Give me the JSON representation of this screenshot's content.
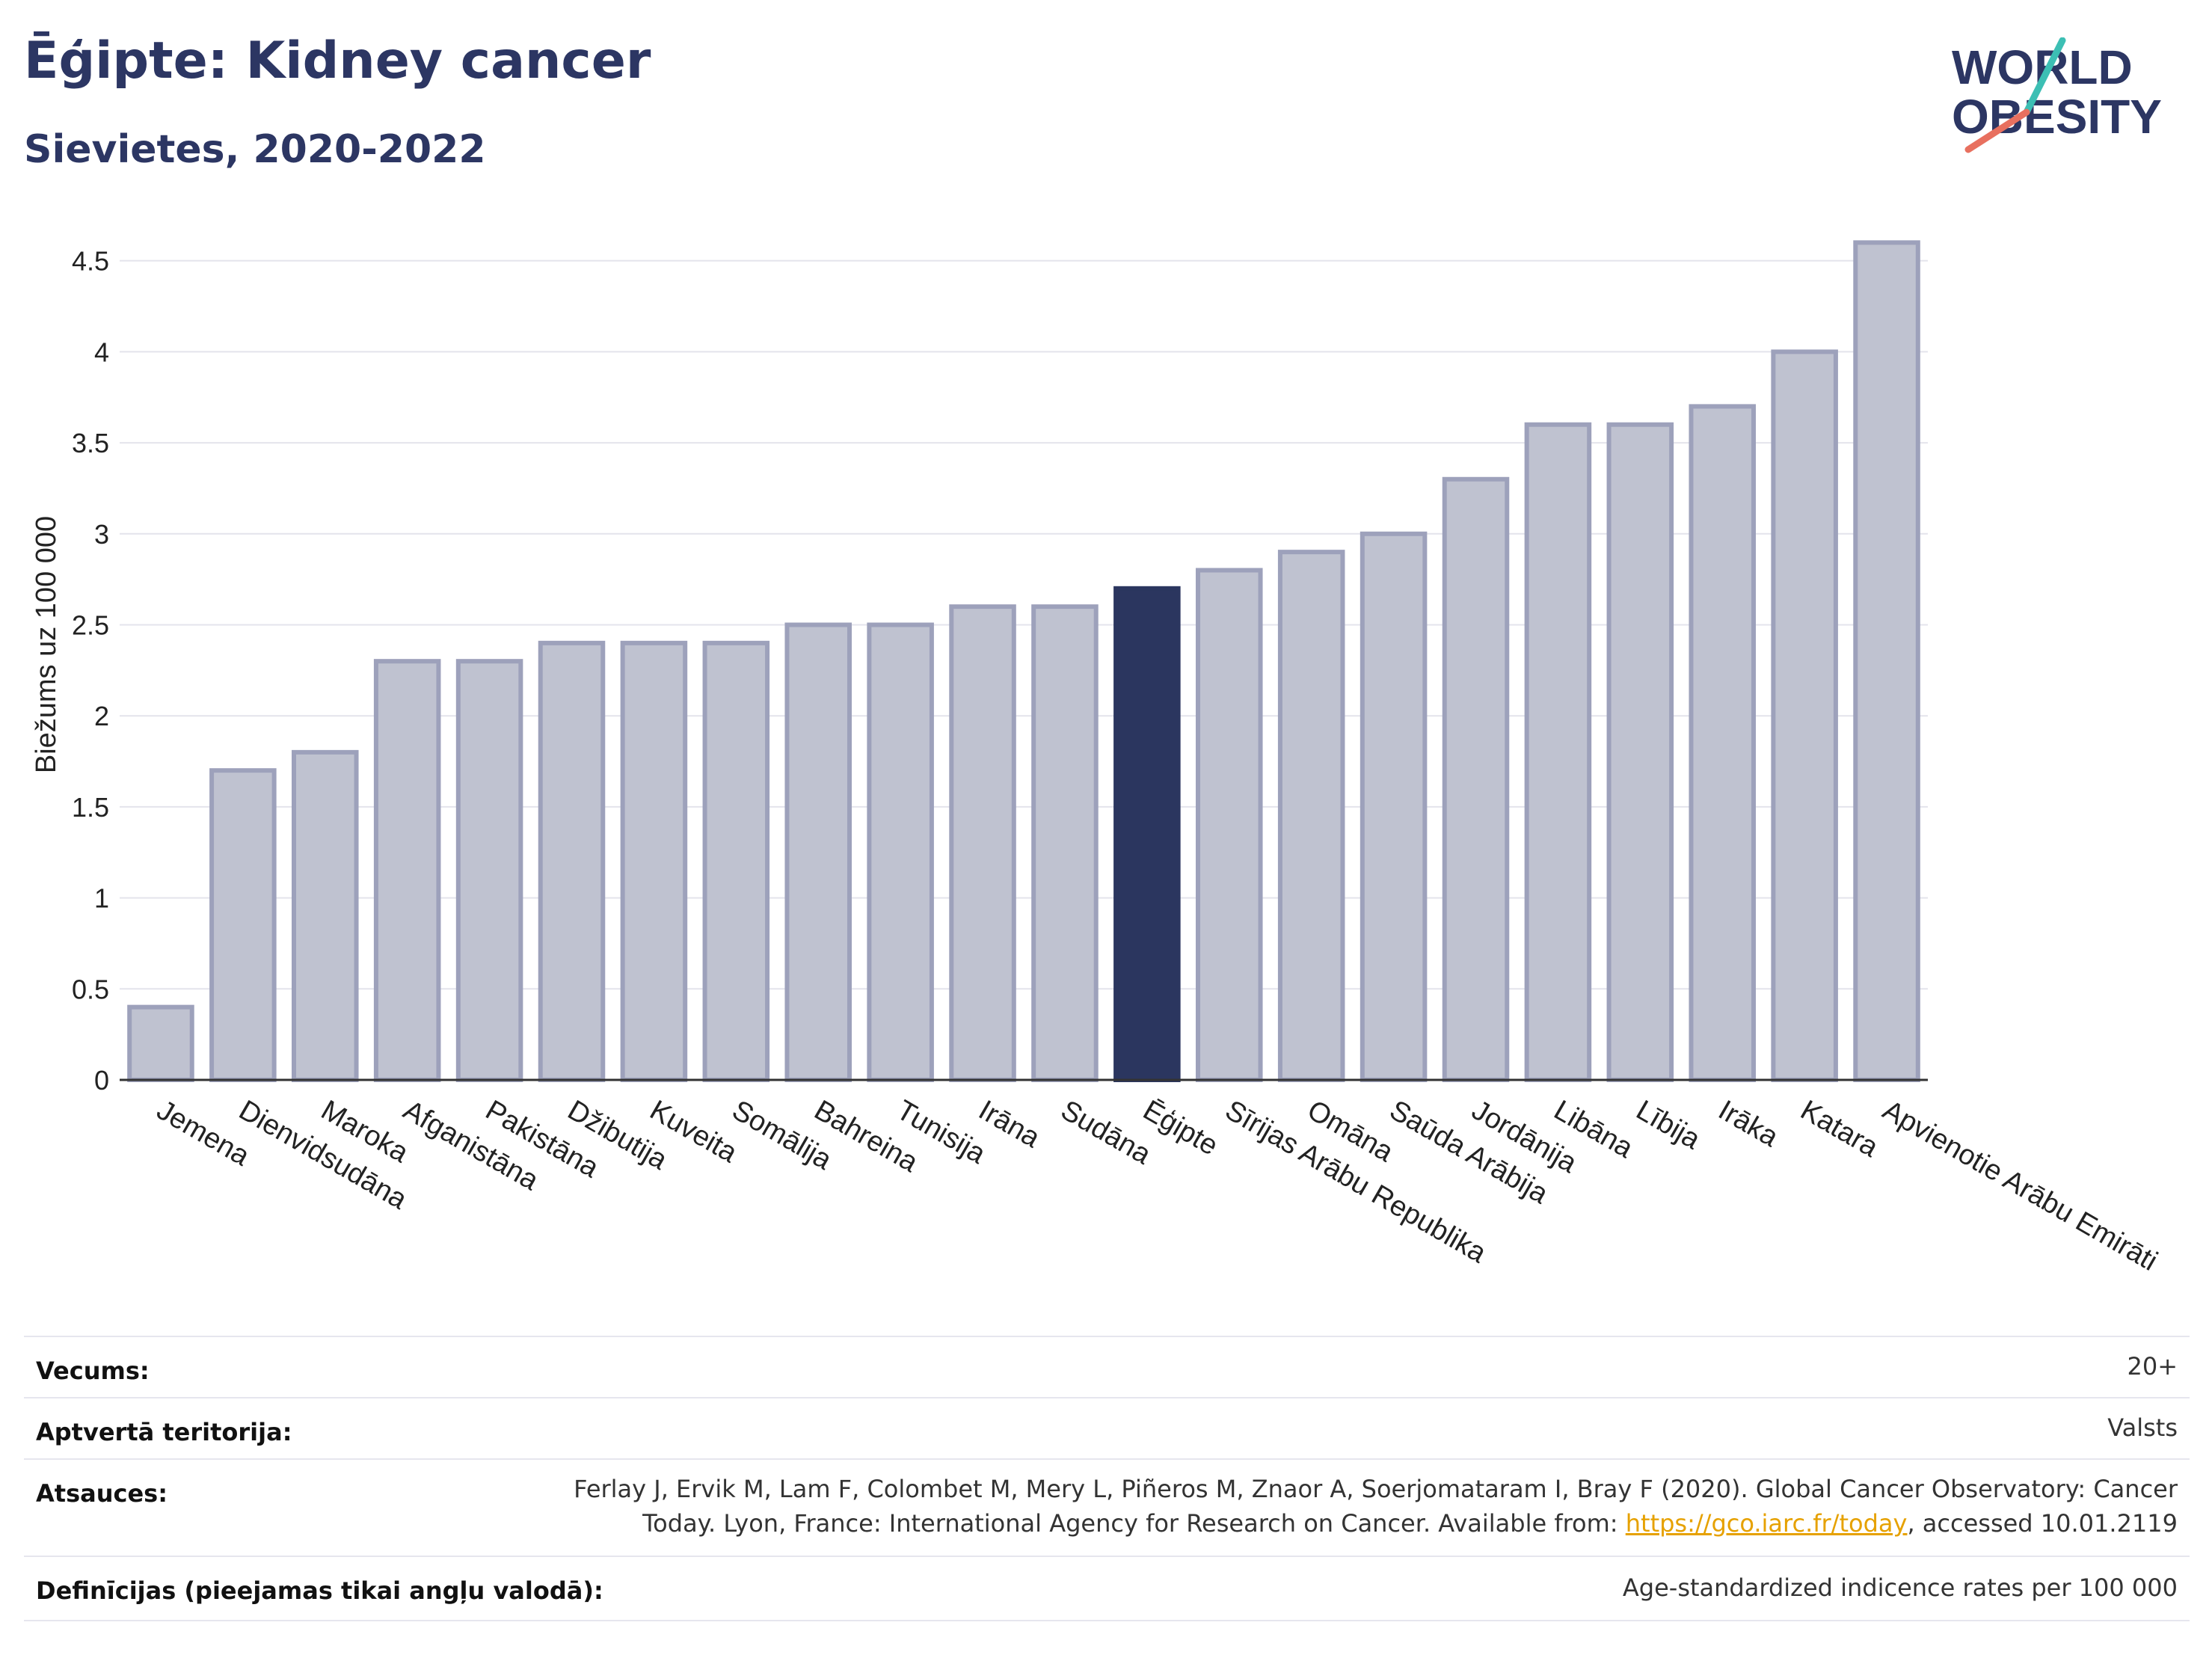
{
  "header": {
    "title": "Ēģipte: Kidney cancer",
    "subtitle": "Sievietes, 2020-2022"
  },
  "logo": {
    "line1": "WORLD",
    "line2": "OBESITY"
  },
  "colors": {
    "highlight": "#2b365f",
    "bar": "#bfc2d0",
    "bar_border": "#9da1bb",
    "grid": "#e4e4ec"
  },
  "chart_data": {
    "type": "bar",
    "ylabel": "Biežums uz 100 000",
    "ylim": [
      0,
      4.7
    ],
    "yticks": [
      "0",
      "0.5",
      "1",
      "1.5",
      "2",
      "2.5",
      "3",
      "3.5",
      "4",
      "4.5"
    ],
    "ytick_values": [
      0,
      0.5,
      1,
      1.5,
      2,
      2.5,
      3,
      3.5,
      4,
      4.5
    ],
    "grid": true,
    "highlight": "Ēģipte",
    "categories": [
      "Jemena",
      "Dienvidsudāna",
      "Maroka",
      "Afganistāna",
      "Pakistāna",
      "Džibutija",
      "Kuveita",
      "Somālija",
      "Bahreina",
      "Tunisija",
      "Irāna",
      "Sudāna",
      "Ēģipte",
      "Sīrijas Arābu Republika",
      "Omāna",
      "Saūda Arābija",
      "Jordānija",
      "Libāna",
      "Lībija",
      "Irāka",
      "Katara",
      "Apvienotie Arābu Emirāti"
    ],
    "values": [
      0.4,
      1.7,
      1.8,
      2.3,
      2.3,
      2.4,
      2.4,
      2.4,
      2.5,
      2.5,
      2.6,
      2.6,
      2.7,
      2.8,
      2.9,
      3.0,
      3.3,
      3.6,
      3.6,
      3.7,
      4.0,
      4.6
    ]
  },
  "info": {
    "age_label": "Vecums:",
    "age_value": "20+",
    "territory_label": "Aptvertā teritorija:",
    "territory_value": "Valsts",
    "refs_label": "Atsauces:",
    "refs_line1": "Ferlay J, Ervik M, Lam F, Colombet M, Mery L, Piñeros M, Znaor A, Soerjomataram I, Bray F (2020). Global Cancer Observatory: Cancer",
    "refs_line2_pre": "Today. Lyon, France: International Agency for Research on Cancer. Available from: ",
    "refs_link": "https://gco.iarc.fr/today",
    "refs_line2_post": ", accessed 10.01.2119",
    "defs_label": "Definīcijas (pieejamas tikai angļu valodā):",
    "defs_value": "Age-standardized indicence rates per 100 000"
  }
}
